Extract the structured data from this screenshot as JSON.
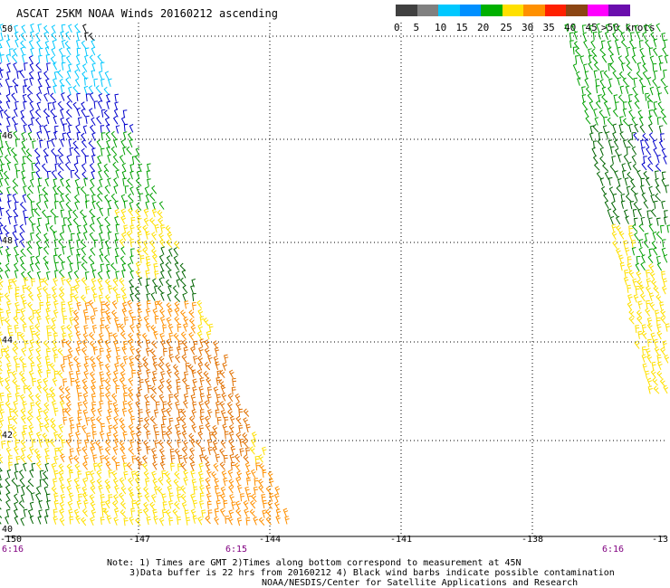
{
  "title": "ASCAT 25KM NOAA Winds 20160212 ascending",
  "colorbar": {
    "labels": [
      "0",
      "5",
      "10",
      "15",
      "20",
      "25",
      "30",
      "35",
      "40",
      "45",
      ">50 knots"
    ],
    "colors": [
      "#404040",
      "#808080",
      "#00c8ff",
      "#0090ff",
      "#00b000",
      "#ffe000",
      "#ff9000",
      "#ff2000",
      "#8b4513",
      "#ff00ff",
      "#6a0dad"
    ]
  },
  "latitudes": [
    "50",
    "46",
    "48",
    "44",
    "42",
    "40"
  ],
  "longitudes": [
    "-150",
    "-147",
    "-144",
    "-141",
    "-138",
    "-13"
  ],
  "times": [
    "6:16",
    "6:15",
    "6:16"
  ],
  "notes": [
    "Note: 1) Times are GMT 2)Times along bottom correspond to measurement at 45N",
    "3)Data buffer is 22 hrs from 20160212 4) Black wind barbs indicate possible contamination",
    "NOAA/NESDIS/Center for Satellite Applications and Research"
  ],
  "barb_colors": {
    "black": "#000000",
    "cyan": "#00c8ff",
    "blue": "#0000cc",
    "green": "#00a000",
    "darkgreen": "#006400",
    "yellow": "#ffe000",
    "orange": "#ff9000",
    "darkorange": "#e07000"
  }
}
